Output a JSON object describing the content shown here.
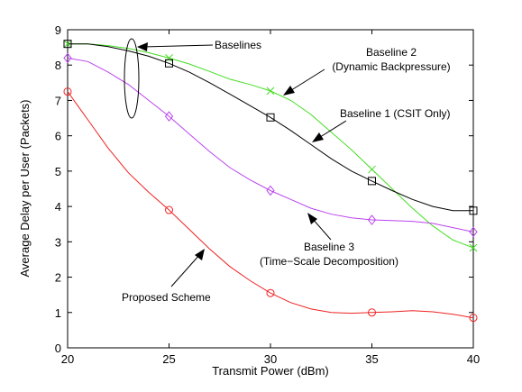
{
  "chart_data": {
    "type": "line",
    "xlabel": "Transmit Power (dBm)",
    "ylabel": "Average Delay per User (Packets)",
    "xlim": [
      20,
      40
    ],
    "ylim": [
      0,
      9
    ],
    "xticks": [
      "20",
      "25",
      "30",
      "35",
      "40"
    ],
    "yticks": [
      "0",
      "1",
      "2",
      "3",
      "4",
      "5",
      "6",
      "7",
      "8",
      "9"
    ],
    "grid": false,
    "series": [
      {
        "name": "Baseline 2 (Dynamic Backpressure)",
        "color": "#44dd22",
        "marker": "x",
        "x": [
          20,
          25,
          30,
          35,
          40
        ],
        "y": [
          8.6,
          8.2,
          7.27,
          5.05,
          2.83
        ],
        "curve_x": [
          20,
          21,
          22,
          23,
          24,
          25,
          26,
          27,
          28,
          29,
          30,
          31,
          32,
          33,
          34,
          35,
          36,
          37,
          38,
          39,
          40
        ],
        "curve_y": [
          8.6,
          8.6,
          8.55,
          8.47,
          8.35,
          8.2,
          8.03,
          7.82,
          7.6,
          7.45,
          7.27,
          7.0,
          6.6,
          6.1,
          5.6,
          5.05,
          4.5,
          3.95,
          3.45,
          3.05,
          2.83
        ]
      },
      {
        "name": "Baseline 1 (CSIT Only)",
        "color": "#000000",
        "marker": "square",
        "x": [
          20,
          25,
          30,
          35,
          40
        ],
        "y": [
          8.6,
          8.05,
          6.52,
          4.72,
          3.88
        ],
        "curve_x": [
          20,
          21,
          22,
          23,
          24,
          25,
          26,
          27,
          28,
          29,
          30,
          31,
          32,
          33,
          34,
          35,
          36,
          37,
          38,
          39,
          40
        ],
        "curve_y": [
          8.6,
          8.6,
          8.52,
          8.4,
          8.25,
          8.05,
          7.8,
          7.5,
          7.18,
          6.85,
          6.52,
          6.15,
          5.75,
          5.35,
          5.0,
          4.72,
          4.45,
          4.2,
          4.0,
          3.88,
          3.88
        ]
      },
      {
        "name": "Baseline 3 (Time-Scale Decomposition)",
        "color": "#bb44ee",
        "marker": "diamond",
        "x": [
          20,
          25,
          30,
          35,
          40
        ],
        "y": [
          8.2,
          6.55,
          4.45,
          3.62,
          3.28
        ],
        "curve_x": [
          20,
          21,
          22,
          23,
          24,
          25,
          26,
          27,
          28,
          29,
          30,
          31,
          32,
          33,
          34,
          35,
          36,
          37,
          38,
          39,
          40
        ],
        "curve_y": [
          8.2,
          8.1,
          7.8,
          7.45,
          7.0,
          6.55,
          6.05,
          5.55,
          5.1,
          4.75,
          4.45,
          4.2,
          3.95,
          3.78,
          3.68,
          3.62,
          3.6,
          3.58,
          3.52,
          3.4,
          3.28
        ]
      },
      {
        "name": "Proposed Scheme",
        "color": "#ee2222",
        "marker": "circle",
        "x": [
          20,
          25,
          30,
          35,
          40
        ],
        "y": [
          7.25,
          3.9,
          1.55,
          1.0,
          0.85
        ],
        "curve_x": [
          20,
          21,
          22,
          23,
          24,
          25,
          26,
          27,
          28,
          29,
          30,
          31,
          32,
          33,
          34,
          35,
          36,
          37,
          38,
          39,
          40
        ],
        "curve_y": [
          7.25,
          6.45,
          5.65,
          4.95,
          4.4,
          3.9,
          3.35,
          2.8,
          2.3,
          1.9,
          1.55,
          1.28,
          1.1,
          1.0,
          0.98,
          1.0,
          1.02,
          1.05,
          1.02,
          0.95,
          0.85
        ]
      }
    ],
    "annotations": [
      {
        "lines": [
          "Baselines"
        ]
      },
      {
        "lines": [
          "Baseline 2",
          "(Dynamic Backpressure)"
        ]
      },
      {
        "lines": [
          "Baseline 1 (CSIT Only)"
        ]
      },
      {
        "lines": [
          "Baseline 3",
          "(Time−Scale Decomposition)"
        ]
      },
      {
        "lines": [
          "Proposed Scheme"
        ]
      }
    ]
  }
}
